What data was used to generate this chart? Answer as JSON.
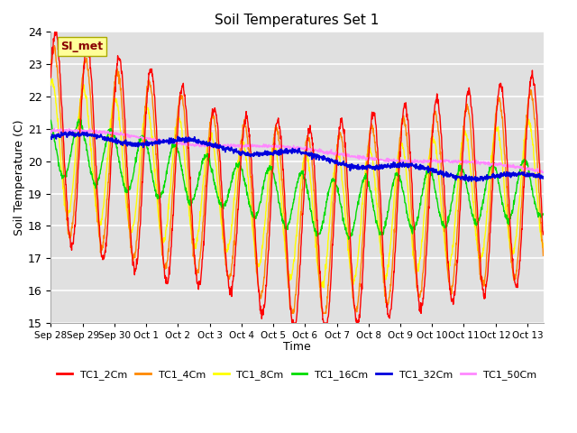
{
  "title": "Soil Temperatures Set 1",
  "xlabel": "Time",
  "ylabel": "Soil Temperature (C)",
  "ylim": [
    15.0,
    24.0
  ],
  "yticks": [
    15.0,
    16.0,
    17.0,
    18.0,
    19.0,
    20.0,
    21.0,
    22.0,
    23.0,
    24.0
  ],
  "xtick_labels": [
    "Sep 28",
    "Sep 29",
    "Sep 30",
    "Oct 1",
    "Oct 2",
    "Oct 3",
    "Oct 4",
    "Oct 5",
    "Oct 6",
    "Oct 7",
    "Oct 8",
    "Oct 9",
    "Oct 10",
    "Oct 11",
    "Oct 12",
    "Oct 13"
  ],
  "series_colors": {
    "TC1_2Cm": "#ff0000",
    "TC1_4Cm": "#ff8800",
    "TC1_8Cm": "#ffff00",
    "TC1_16Cm": "#00dd00",
    "TC1_32Cm": "#0000dd",
    "TC1_50Cm": "#ff88ff"
  },
  "annotation_text": "SI_met",
  "annotation_color": "#880000",
  "annotation_bg": "#ffff99",
  "plot_bg": "#e0e0e0",
  "grid_color": "#ffffff",
  "n_days": 15.5,
  "points_per_day": 96
}
